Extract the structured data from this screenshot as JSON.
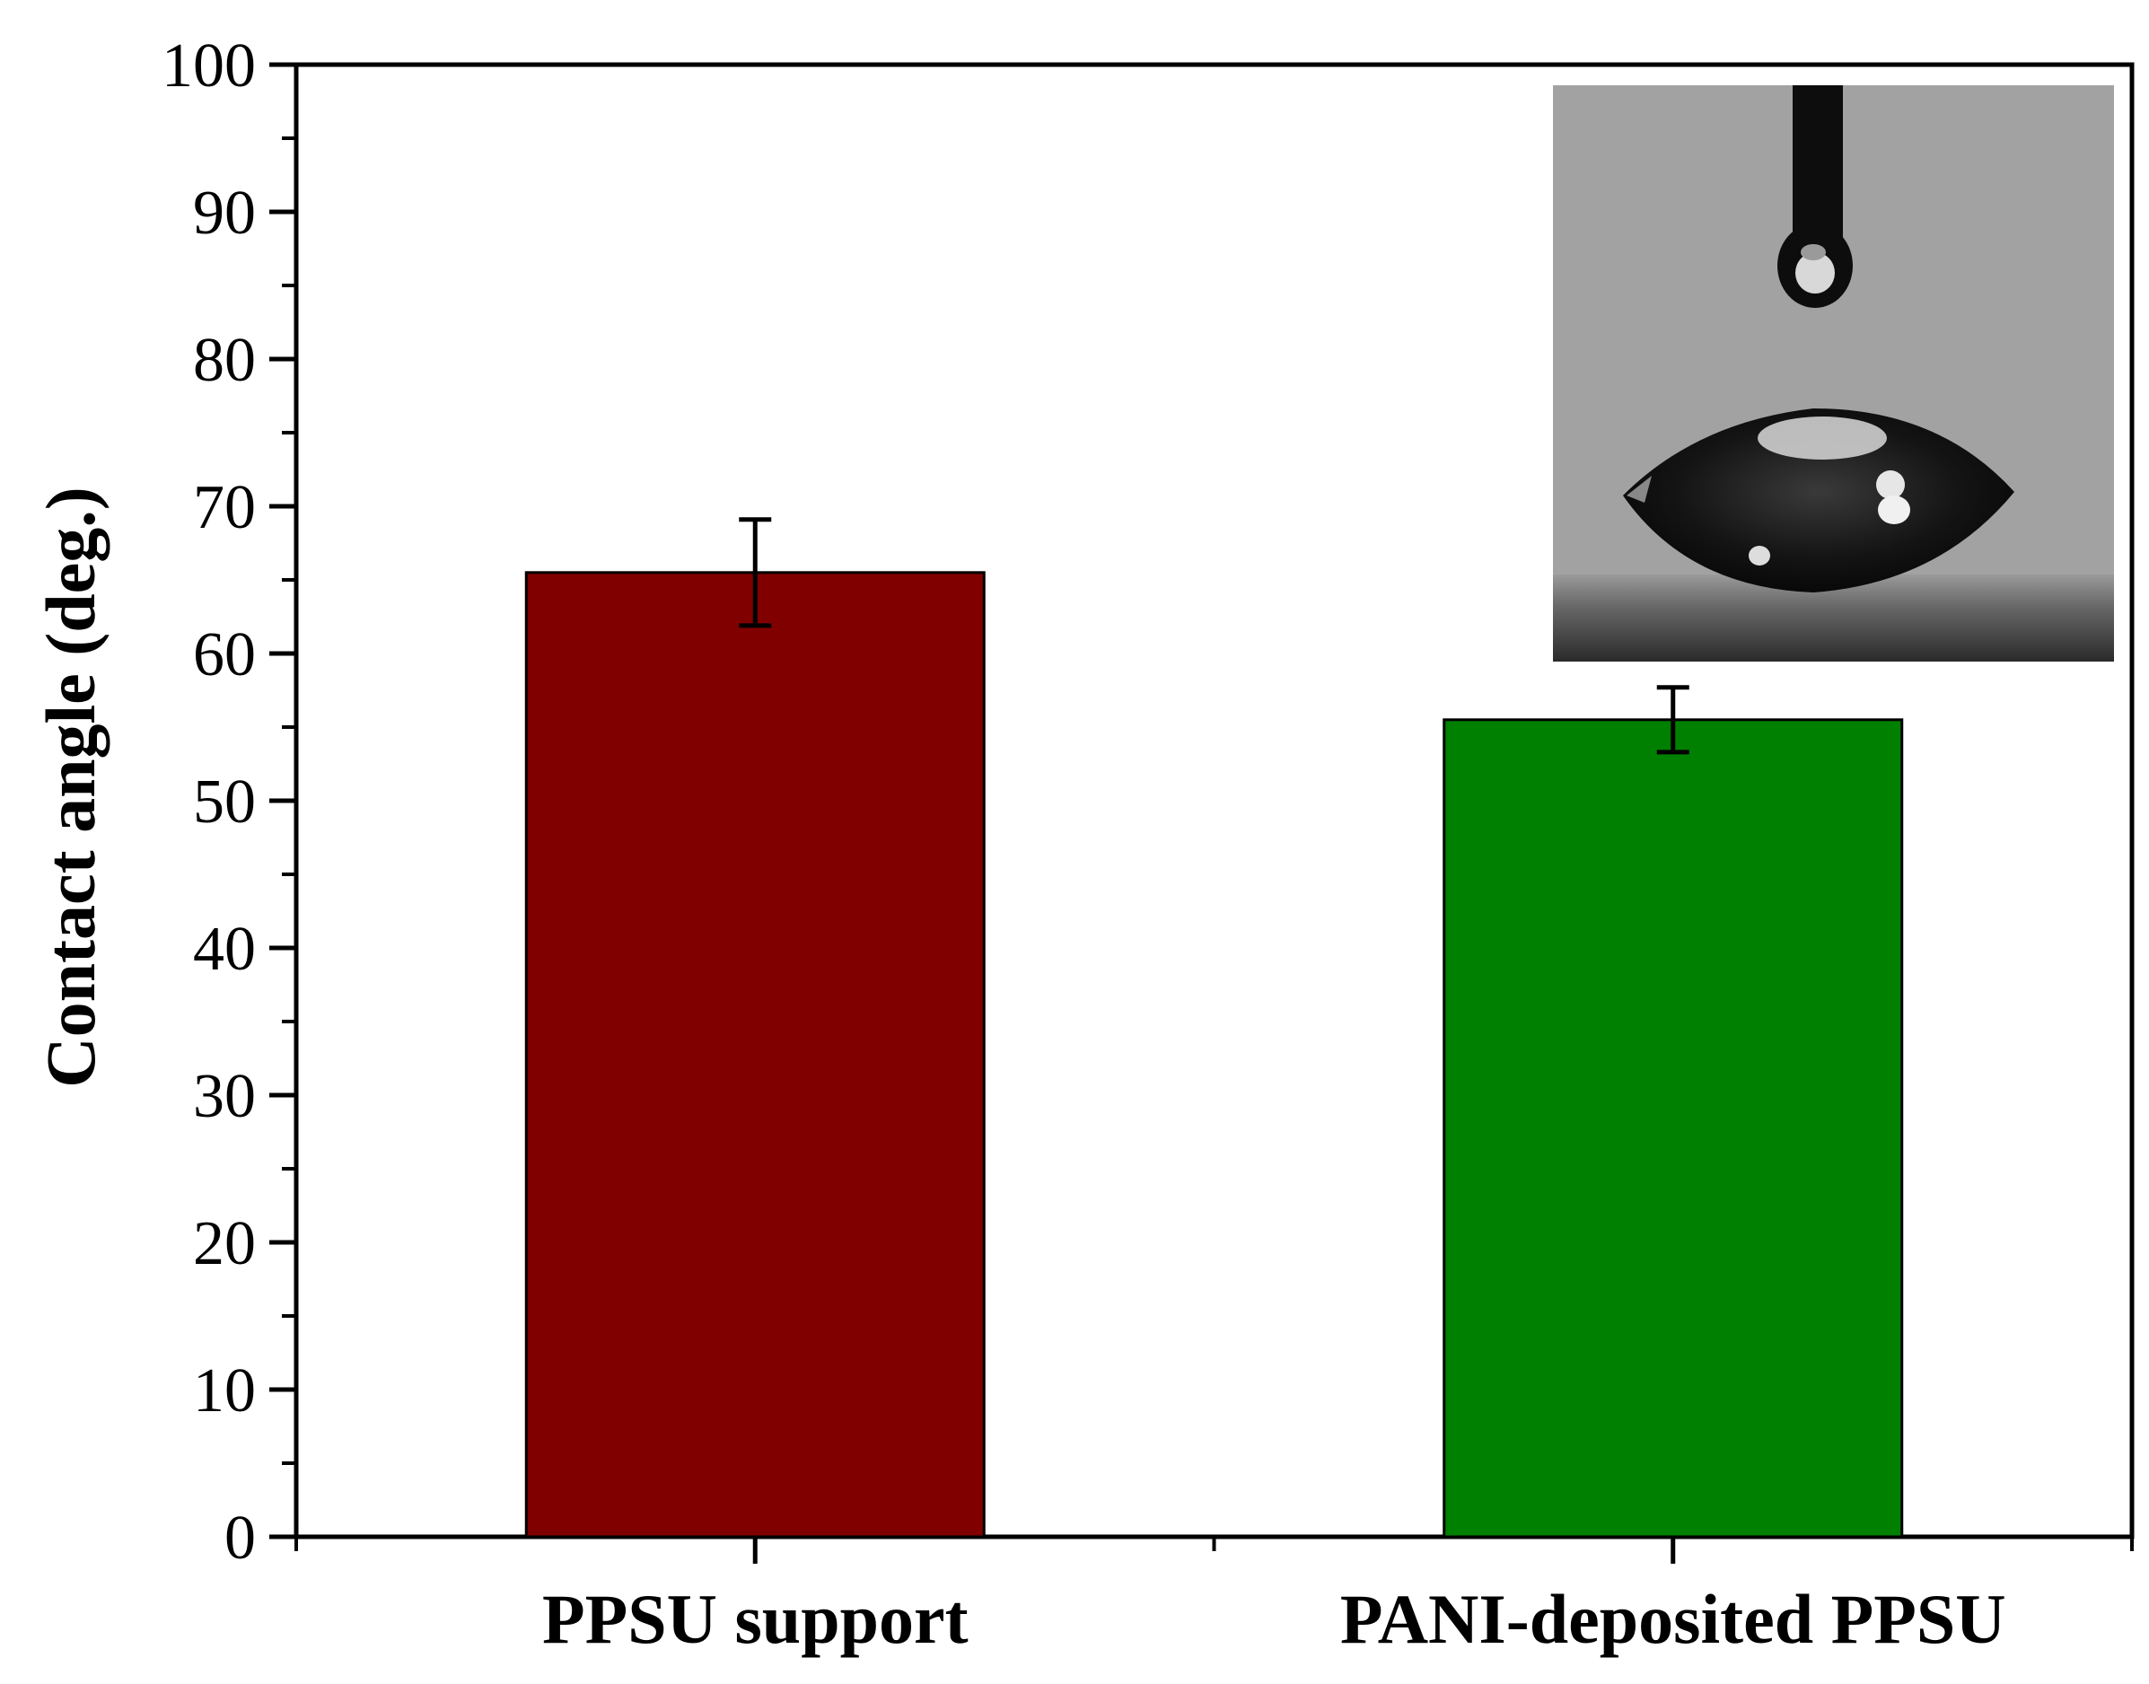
{
  "chart_data": {
    "type": "bar",
    "title": "",
    "xlabel": "",
    "ylabel": "Contact angle (deg.)",
    "ylim": [
      0,
      100
    ],
    "yticks": [
      0,
      10,
      20,
      30,
      40,
      50,
      60,
      70,
      80,
      90,
      100
    ],
    "categories": [
      "PPSU support",
      "PANI-deposited PPSU"
    ],
    "values": [
      65.5,
      55.5
    ],
    "errors": [
      3.6,
      2.2
    ],
    "colors": [
      "#800000",
      "#008000"
    ],
    "grid": false,
    "legend": "none"
  },
  "inset": {
    "description_icon": "water-droplet-photo"
  }
}
